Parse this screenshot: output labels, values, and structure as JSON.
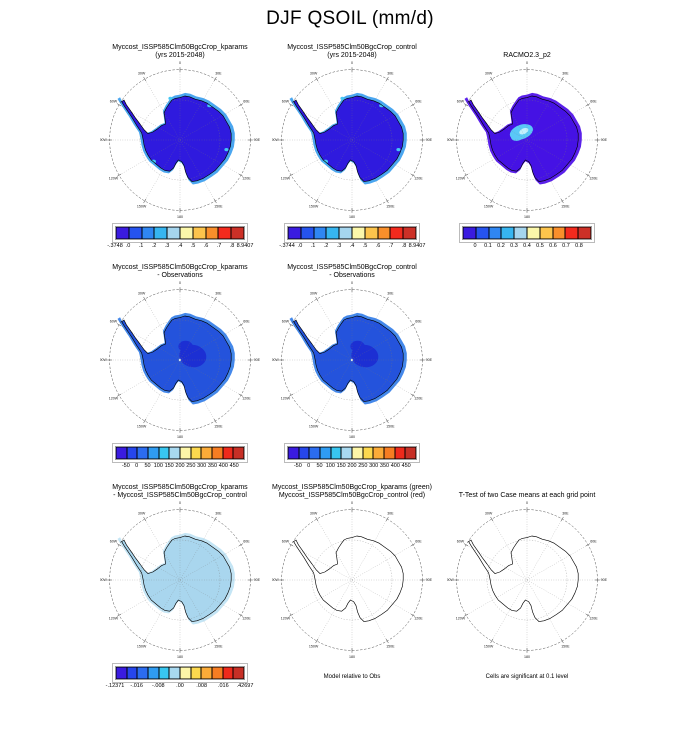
{
  "page": {
    "title": "DJF QSOIL (mm/d)"
  },
  "map_grid": {
    "lon_labels": [
      "0",
      "30E",
      "60E",
      "90E",
      "120E",
      "150E",
      "180",
      "150W",
      "120W",
      "90W",
      "60W",
      "30W"
    ]
  },
  "panels": [
    {
      "title": "Myccost_ISSP585Clm50BgcCrop_kparams\n(yrs 2015-2048)",
      "map": {
        "fill": "#2f1ade",
        "halo": "#4aa6f0",
        "outline": "#000000",
        "patches": [
          {
            "shape": "coast_spots",
            "colors": [
              "#45c6f4"
            ]
          }
        ]
      },
      "colorbar": {
        "colors": [
          "#3a1be0",
          "#2553ef",
          "#2f86f2",
          "#36b5f0",
          "#a5d5ee",
          "#fbf7aa",
          "#fcc44c",
          "#f98f2b",
          "#f32a1d",
          "#cc3027"
        ],
        "labels": [
          {
            "t": "-.3748",
            "p": 0
          },
          {
            "t": ".0",
            "p": 1
          },
          {
            "t": ".1",
            "p": 2
          },
          {
            "t": ".2",
            "p": 3
          },
          {
            "t": ".3",
            "p": 4
          },
          {
            "t": ".4",
            "p": 5
          },
          {
            "t": ".5",
            "p": 6
          },
          {
            "t": ".6",
            "p": 7
          },
          {
            "t": ".7",
            "p": 8
          },
          {
            "t": ".8",
            "p": 9
          },
          {
            "t": "8.9407",
            "p": 10
          }
        ]
      }
    },
    {
      "title": "Myccost_ISSP585Clm50BgcCrop_control\n(yrs 2015-2048)",
      "map": {
        "fill": "#2f1ade",
        "halo": "#4aa6f0",
        "outline": "#000000",
        "patches": [
          {
            "shape": "coast_spots",
            "colors": [
              "#45c6f4"
            ]
          }
        ]
      },
      "colorbar": {
        "colors": [
          "#3a1be0",
          "#2553ef",
          "#2f86f2",
          "#36b5f0",
          "#a5d5ee",
          "#fbf7aa",
          "#fcc44c",
          "#f98f2b",
          "#f32a1d",
          "#cc3027"
        ],
        "labels": [
          {
            "t": "-.3744",
            "p": 0
          },
          {
            "t": ".0",
            "p": 1
          },
          {
            "t": ".1",
            "p": 2
          },
          {
            "t": ".2",
            "p": 3
          },
          {
            "t": ".3",
            "p": 4
          },
          {
            "t": ".4",
            "p": 5
          },
          {
            "t": ".5",
            "p": 6
          },
          {
            "t": ".6",
            "p": 7
          },
          {
            "t": ".7",
            "p": 8
          },
          {
            "t": ".8",
            "p": 9
          },
          {
            "t": "8.9407",
            "p": 10
          }
        ]
      }
    },
    {
      "title": "RACMO2.3_p2",
      "map": {
        "fill": "#4512e4",
        "halo": "#5a20ea",
        "outline": "#000000",
        "patches": [
          {
            "shape": "center_melt",
            "colors": [
              "#5ac8f7",
              "#c2f0fd"
            ]
          }
        ]
      },
      "colorbar": {
        "colors": [
          "#3a1be0",
          "#2553ef",
          "#2f86f2",
          "#36b5f0",
          "#a5d5ee",
          "#fbf7aa",
          "#fcc44c",
          "#f98f2b",
          "#f32a1d",
          "#cc3027"
        ],
        "labels": [
          {
            "t": "0",
            "p": 1
          },
          {
            "t": "0.1",
            "p": 2
          },
          {
            "t": "0.2",
            "p": 3
          },
          {
            "t": "0.3",
            "p": 4
          },
          {
            "t": "0.4",
            "p": 5
          },
          {
            "t": "0.5",
            "p": 6
          },
          {
            "t": "0.6",
            "p": 7
          },
          {
            "t": "0.7",
            "p": 8
          },
          {
            "t": "0.8",
            "p": 9
          }
        ]
      }
    },
    {
      "title": "Myccost_ISSP585Clm50BgcCrop_kparams\n- Observations",
      "map": {
        "fill": "#2453dc",
        "halo": "#4488ea",
        "outline": "#000000",
        "patches": [
          {
            "shape": "center_dark",
            "colors": [
              "#1c2fd3"
            ]
          },
          {
            "shape": "pole_dot",
            "colors": [
              "#dff0f8"
            ]
          }
        ]
      },
      "colorbar": {
        "colors": [
          "#3a1be0",
          "#2646ec",
          "#2b6cf0",
          "#2f9cf2",
          "#38c6f0",
          "#a8d9f0",
          "#fdf6a8",
          "#fcd84e",
          "#fbab38",
          "#f67d22",
          "#ee2a1c",
          "#c62f26"
        ],
        "labels": [
          {
            "t": "-50",
            "p": 1
          },
          {
            "t": "0",
            "p": 2
          },
          {
            "t": "50",
            "p": 3
          },
          {
            "t": "100",
            "p": 4
          },
          {
            "t": "150",
            "p": 5
          },
          {
            "t": "200",
            "p": 6
          },
          {
            "t": "250",
            "p": 7
          },
          {
            "t": "300",
            "p": 8
          },
          {
            "t": "350",
            "p": 9
          },
          {
            "t": "400",
            "p": 10
          },
          {
            "t": "450",
            "p": 11
          }
        ]
      }
    },
    {
      "title": "Myccost_ISSP585Clm50BgcCrop_control\n- Observations",
      "map": {
        "fill": "#2453dc",
        "halo": "#4488ea",
        "outline": "#000000",
        "patches": [
          {
            "shape": "center_dark",
            "colors": [
              "#1c2fd3"
            ]
          },
          {
            "shape": "pole_dot",
            "colors": [
              "#dff0f8"
            ]
          }
        ]
      },
      "colorbar": {
        "colors": [
          "#3a1be0",
          "#2646ec",
          "#2b6cf0",
          "#2f9cf2",
          "#38c6f0",
          "#a8d9f0",
          "#fdf6a8",
          "#fcd84e",
          "#fbab38",
          "#f67d22",
          "#ee2a1c",
          "#c62f26"
        ],
        "labels": [
          {
            "t": "-50",
            "p": 1
          },
          {
            "t": "0",
            "p": 2
          },
          {
            "t": "50",
            "p": 3
          },
          {
            "t": "100",
            "p": 4
          },
          {
            "t": "150",
            "p": 5
          },
          {
            "t": "200",
            "p": 6
          },
          {
            "t": "250",
            "p": 7
          },
          {
            "t": "300",
            "p": 8
          },
          {
            "t": "350",
            "p": 9
          },
          {
            "t": "400",
            "p": 10
          },
          {
            "t": "450",
            "p": 11
          }
        ]
      }
    },
    {
      "title": "Myccost_ISSP585Clm50BgcCrop_kparams\n- Myccost_ISSP585Clm50BgcCrop_control",
      "map": {
        "fill": "#a9d6ee",
        "halo": "#c4e5f5",
        "outline": "#000000",
        "patches": []
      },
      "colorbar": {
        "colors": [
          "#3a1be0",
          "#2646ec",
          "#2b6cf0",
          "#2f9cf2",
          "#38c6f0",
          "#a8d9f0",
          "#fdf6a8",
          "#fcd84e",
          "#fbab38",
          "#f67d22",
          "#ee2a1c",
          "#c62f26"
        ],
        "labels": [
          {
            "t": "-.12371",
            "p": 0
          },
          {
            "t": "-.016",
            "p": 2
          },
          {
            "t": "-.008",
            "p": 4
          },
          {
            "t": ".00",
            "p": 6
          },
          {
            "t": ".008",
            "p": 8
          },
          {
            "t": ".016",
            "p": 10
          },
          {
            "t": ".42697",
            "p": 12
          }
        ]
      }
    },
    {
      "title": "Myccost_ISSP585Clm50BgcCrop_kparams (green)\nMyccost_ISSP585Clm50BgcCrop_control (red)",
      "map": {
        "fill": "none",
        "halo": null,
        "outline": "#000000",
        "patches": []
      },
      "colorbar": null,
      "footnote": "Model relative to Obs"
    },
    {
      "title": "T-Test of two Case means at each grid point",
      "map": {
        "fill": "none",
        "halo": null,
        "outline": "#000000",
        "patches": []
      },
      "colorbar": null,
      "footnote": "Cells are significant at 0.1 level"
    }
  ],
  "chart_data": [
    {
      "type": "heatmap",
      "title": "Myccost_ISSP585Clm50BgcCrop_kparams (yrs 2015-2048)",
      "projection": "antarctic polar stereographic",
      "units": "mm/d",
      "colorbar_ticks": [
        "-.3748",
        ".0",
        ".1",
        ".2",
        ".3",
        ".4",
        ".5",
        ".6",
        ".7",
        ".8",
        "8.9407"
      ],
      "field": "QSOIL near 0-0.1 over interior (dark blue-purple), 0.1-0.4 light blue/cyan coastal fringe"
    },
    {
      "type": "heatmap",
      "title": "Myccost_ISSP585Clm50BgcCrop_control (yrs 2015-2048)",
      "projection": "antarctic polar stereographic",
      "units": "mm/d",
      "colorbar_ticks": [
        "-.3744",
        ".0",
        ".1",
        ".2",
        ".3",
        ".4",
        ".5",
        ".6",
        ".7",
        ".8",
        "8.9407"
      ],
      "field": "QSOIL near 0-0.1 over interior (dark blue-purple), 0.1-0.4 light blue/cyan coastal fringe"
    },
    {
      "type": "heatmap",
      "title": "RACMO2.3_p2",
      "projection": "antarctic polar stereographic",
      "units": "mm/d",
      "colorbar_ticks": [
        "0",
        "0.1",
        "0.2",
        "0.3",
        "0.4",
        "0.5",
        "0.6",
        "0.7",
        "0.8"
      ],
      "field": "mostly lowest bin (purple-blue) with cyan/white patch of 0.2-0.4 near the pole"
    },
    {
      "type": "heatmap",
      "title": "Myccost_ISSP585Clm50BgcCrop_kparams - Observations",
      "projection": "antarctic polar stereographic",
      "units": "mm/d",
      "colorbar_ticks": [
        "-50",
        "0",
        "50",
        "100",
        "150",
        "200",
        "250",
        "300",
        "350",
        "400",
        "450"
      ],
      "field": "uniform 0-50 bin (blue) with darker -50-0 patch near pole"
    },
    {
      "type": "heatmap",
      "title": "Myccost_ISSP585Clm50BgcCrop_control - Observations",
      "projection": "antarctic polar stereographic",
      "units": "mm/d",
      "colorbar_ticks": [
        "-50",
        "0",
        "50",
        "100",
        "150",
        "200",
        "250",
        "300",
        "350",
        "400",
        "450"
      ],
      "field": "uniform 0-50 bin (blue) with darker -50-0 patch near pole"
    },
    {
      "type": "heatmap",
      "title": "Myccost_ISSP585Clm50BgcCrop_kparams - Myccost_ISSP585Clm50BgcCrop_control",
      "projection": "antarctic polar stereographic",
      "units": "mm/d",
      "colorbar_ticks": [
        "-.12371",
        "-.016",
        "-.008",
        ".00",
        ".008",
        ".016",
        ".42697"
      ],
      "field": "uniform pale-blue small negative/near-zero difference over whole continent"
    },
    {
      "type": "map-outline",
      "title": "Myccost_ISSP585Clm50BgcCrop_kparams (green) Myccost_ISSP585Clm50BgcCrop_control (red)",
      "field": "coastline outline only, no shaded cells",
      "note": "Model relative to Obs"
    },
    {
      "type": "map-outline",
      "title": "T-Test of two Case means at each grid point",
      "field": "coastline outline only, no significant cells shaded",
      "note": "Cells are significant at 0.1 level"
    }
  ]
}
